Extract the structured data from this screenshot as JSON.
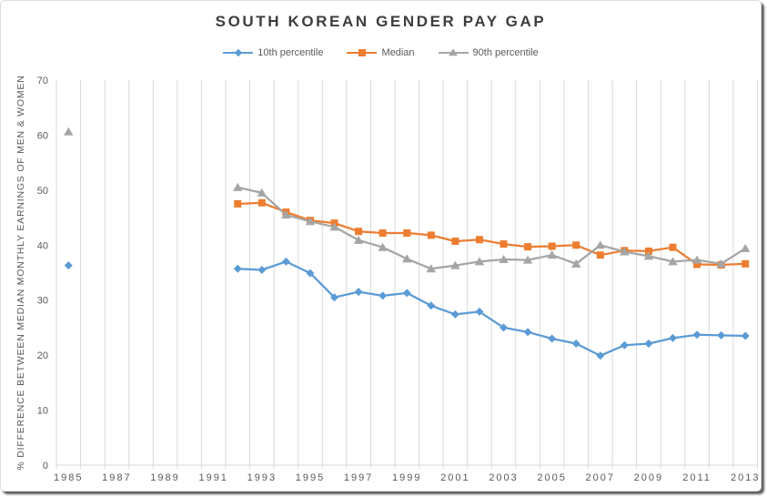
{
  "chart_data": {
    "type": "line",
    "title": "SOUTH KOREAN GENDER PAY GAP",
    "xlabel": "",
    "ylabel": "% DIFFERENCE BETWEEN MEDIAN MONTHLY EARNINGS OF MEN & WOMEN",
    "ylim": [
      0,
      70
    ],
    "yticks": [
      0,
      10,
      20,
      30,
      40,
      50,
      60,
      70
    ],
    "x_range": [
      1985,
      2013
    ],
    "xticks": [
      1985,
      1987,
      1989,
      1991,
      1993,
      1995,
      1997,
      1999,
      2001,
      2003,
      2005,
      2007,
      2009,
      2011,
      2013
    ],
    "grid": "vertical-only",
    "legend_position": "top",
    "axis_color": "#d9d9d9",
    "label_color": "#595959",
    "title_color": "#3d3d3d",
    "series": [
      {
        "name": "10th percentile",
        "color": "#5B9BD5",
        "marker": "diamond",
        "points": [
          [
            1985,
            36.3
          ],
          [
            1992,
            35.7
          ],
          [
            1993,
            35.5
          ],
          [
            1994,
            37.0
          ],
          [
            1995,
            34.9
          ],
          [
            1996,
            30.5
          ],
          [
            1997,
            31.5
          ],
          [
            1998,
            30.8
          ],
          [
            1999,
            31.3
          ],
          [
            2000,
            29.0
          ],
          [
            2001,
            27.4
          ],
          [
            2002,
            27.9
          ],
          [
            2003,
            25.0
          ],
          [
            2004,
            24.2
          ],
          [
            2005,
            23.0
          ],
          [
            2006,
            22.1
          ],
          [
            2007,
            19.9
          ],
          [
            2008,
            21.8
          ],
          [
            2009,
            22.1
          ],
          [
            2010,
            23.1
          ],
          [
            2011,
            23.7
          ],
          [
            2012,
            23.6
          ],
          [
            2013,
            23.5
          ]
        ]
      },
      {
        "name": "Median",
        "color": "#ED7D31",
        "marker": "square",
        "points": [
          [
            1992,
            47.5
          ],
          [
            1993,
            47.7
          ],
          [
            1994,
            46.0
          ],
          [
            1995,
            44.5
          ],
          [
            1996,
            44.0
          ],
          [
            1997,
            42.5
          ],
          [
            1998,
            42.2
          ],
          [
            1999,
            42.2
          ],
          [
            2000,
            41.8
          ],
          [
            2001,
            40.7
          ],
          [
            2002,
            41.0
          ],
          [
            2003,
            40.2
          ],
          [
            2004,
            39.7
          ],
          [
            2005,
            39.8
          ],
          [
            2006,
            40.0
          ],
          [
            2007,
            38.2
          ],
          [
            2008,
            39.0
          ],
          [
            2009,
            38.9
          ],
          [
            2010,
            39.6
          ],
          [
            2011,
            36.5
          ],
          [
            2012,
            36.4
          ],
          [
            2013,
            36.6
          ]
        ]
      },
      {
        "name": "90th percentile",
        "color": "#A5A5A5",
        "marker": "triangle",
        "points": [
          [
            1985,
            60.6
          ],
          [
            1992,
            50.5
          ],
          [
            1993,
            49.5
          ],
          [
            1994,
            45.5
          ],
          [
            1995,
            44.3
          ],
          [
            1996,
            43.3
          ],
          [
            1997,
            40.9
          ],
          [
            1998,
            39.6
          ],
          [
            1999,
            37.5
          ],
          [
            2000,
            35.7
          ],
          [
            2001,
            36.3
          ],
          [
            2002,
            37.0
          ],
          [
            2003,
            37.4
          ],
          [
            2004,
            37.3
          ],
          [
            2005,
            38.2
          ],
          [
            2006,
            36.6
          ],
          [
            2007,
            40.0
          ],
          [
            2008,
            38.8
          ],
          [
            2009,
            38.0
          ],
          [
            2010,
            37.0
          ],
          [
            2011,
            37.3
          ],
          [
            2012,
            36.6
          ],
          [
            2013,
            39.4
          ]
        ]
      }
    ]
  }
}
